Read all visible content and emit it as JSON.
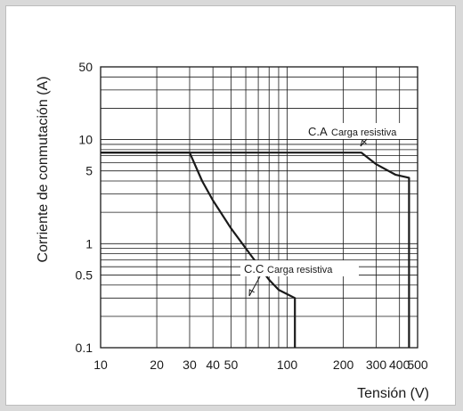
{
  "chart_data": {
    "type": "line",
    "x_scale": "log",
    "y_scale": "log",
    "xlim": [
      10,
      500
    ],
    "ylim": [
      0.1,
      50
    ],
    "xlabel": "Tensión (V)",
    "ylabel": "Corriente de conmutación (A)",
    "x_ticks": [
      10,
      20,
      30,
      40,
      50,
      100,
      200,
      300,
      400,
      500
    ],
    "x_tick_labels": [
      "10",
      "20",
      "30",
      "40",
      "50",
      "100",
      "200",
      "300",
      "400",
      "500"
    ],
    "y_ticks": [
      0.1,
      0.5,
      1,
      5,
      10,
      50
    ],
    "y_tick_labels": [
      "0.1",
      "0.5",
      "1",
      "5",
      "10",
      "50"
    ],
    "grid": true,
    "series": [
      {
        "name": "C.A Carga resistiva",
        "label_prefix": "C.A",
        "label_text": "Carga resistiva",
        "x": [
          10,
          250,
          300,
          380,
          450,
          450
        ],
        "y": [
          7.5,
          7.5,
          5.8,
          4.6,
          4.3,
          0.1
        ]
      },
      {
        "name": "C.C Carga resistiva",
        "label_prefix": "C.C",
        "label_text": "Carga resistiva",
        "x": [
          10,
          30,
          35,
          40,
          50,
          60,
          70,
          80,
          90,
          110,
          110
        ],
        "y": [
          7.5,
          7.5,
          4.0,
          2.6,
          1.4,
          0.9,
          0.62,
          0.45,
          0.36,
          0.3,
          0.1
        ]
      }
    ],
    "colors": {
      "curve": "#1a1a1a",
      "grid": "#1a1a1a",
      "background": "#ffffff"
    }
  }
}
